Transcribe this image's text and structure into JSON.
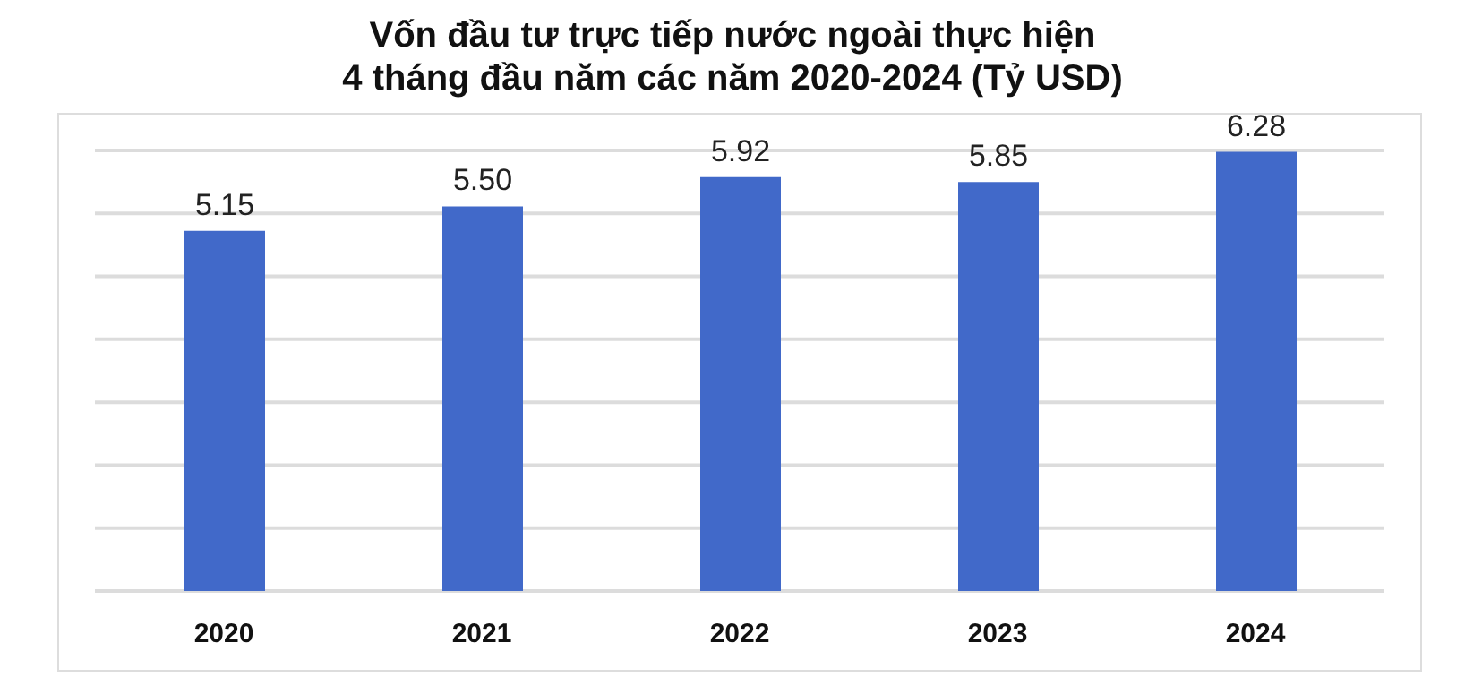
{
  "chart_data": {
    "type": "bar",
    "title": "Vốn đầu tư trực tiếp nước ngoài thực hiện\n4 tháng đầu năm các năm 2020-2024 (Tỷ USD)",
    "categories": [
      "2020",
      "2021",
      "2022",
      "2023",
      "2024"
    ],
    "values": [
      5.15,
      5.5,
      5.92,
      5.85,
      6.28
    ],
    "value_labels": [
      "5.15",
      "5.50",
      "5.92",
      "5.85",
      "6.28"
    ],
    "color": "#4169c9",
    "tick_labels": "x",
    "grid": "y",
    "legend": false
  }
}
